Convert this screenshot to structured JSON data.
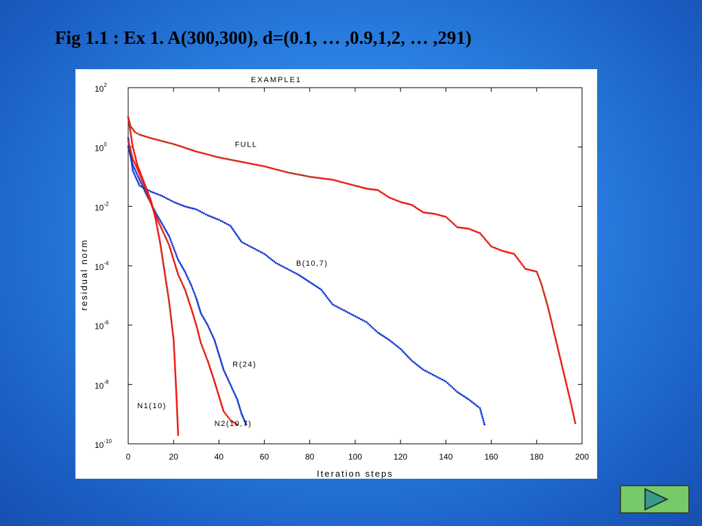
{
  "slide": {
    "title": "Fig 1.1 : Ex 1. A(300,300), d=(0.1, … ,0.9,1,2, … ,291)",
    "next_button_icon": "play-triangle-icon"
  },
  "chart_data": {
    "type": "line",
    "title": "EXAMPLE1",
    "xlabel": "Iteration steps",
    "ylabel": "residual norm",
    "xlim": [
      0,
      200
    ],
    "ylim_log10": [
      -10,
      2
    ],
    "yscale": "log",
    "x_ticks": [
      0,
      20,
      40,
      60,
      80,
      100,
      120,
      140,
      160,
      180,
      200
    ],
    "x_tick_labels": [
      "0",
      "20",
      "40",
      "60",
      "80",
      "100",
      "120",
      "140",
      "160",
      "180",
      "200"
    ],
    "y_ticks_log10": [
      2,
      0,
      -2,
      -4,
      -6,
      -8,
      -10
    ],
    "y_tick_labels": [
      {
        "base": "10",
        "exp": "2"
      },
      {
        "base": "10",
        "exp": "0"
      },
      {
        "base": "10",
        "exp": "-2"
      },
      {
        "base": "10",
        "exp": "-4"
      },
      {
        "base": "10",
        "exp": "-6"
      },
      {
        "base": "10",
        "exp": "-8"
      },
      {
        "base": "10",
        "exp": "-10"
      }
    ],
    "grid": false,
    "series": [
      {
        "name": "FULL",
        "color": "#ee1111",
        "fit_color": "#22cc22",
        "x": [
          0,
          1,
          3,
          5,
          10,
          20,
          30,
          40,
          50,
          60,
          70,
          80,
          90,
          100,
          105,
          110,
          115,
          120,
          125,
          130,
          135,
          140,
          145,
          150,
          155,
          160,
          165,
          170,
          175,
          180,
          182,
          185,
          190,
          195,
          197
        ],
        "log10_y": [
          1.0,
          0.7,
          0.5,
          0.42,
          0.3,
          0.1,
          -0.15,
          -0.35,
          -0.5,
          -0.65,
          -0.85,
          -1.0,
          -1.1,
          -1.3,
          -1.4,
          -1.45,
          -1.7,
          -1.85,
          -1.95,
          -2.2,
          -2.25,
          -2.35,
          -2.7,
          -2.75,
          -2.9,
          -3.35,
          -3.5,
          -3.6,
          -4.1,
          -4.2,
          -4.6,
          -5.4,
          -7.0,
          -8.6,
          -9.3
        ]
      },
      {
        "name": "B(10,7)",
        "color": "#1133cc",
        "fit_color": "",
        "x": [
          0,
          2,
          5,
          10,
          15,
          20,
          25,
          30,
          35,
          40,
          45,
          50,
          55,
          60,
          65,
          70,
          75,
          80,
          85,
          90,
          95,
          100,
          105,
          110,
          115,
          120,
          125,
          130,
          135,
          140,
          145,
          150,
          155,
          157
        ],
        "log10_y": [
          0.3,
          -0.8,
          -1.3,
          -1.5,
          -1.65,
          -1.85,
          -2.0,
          -2.1,
          -2.3,
          -2.45,
          -2.65,
          -3.2,
          -3.4,
          -3.6,
          -3.9,
          -4.1,
          -4.3,
          -4.55,
          -4.8,
          -5.3,
          -5.5,
          -5.7,
          -5.9,
          -6.25,
          -6.5,
          -6.8,
          -7.2,
          -7.5,
          -7.7,
          -7.9,
          -8.25,
          -8.5,
          -8.8,
          -9.35
        ]
      },
      {
        "name": "R(24)",
        "color": "#1133cc",
        "fit_color": "",
        "x": [
          0,
          2,
          5,
          8,
          10,
          12,
          15,
          18,
          20,
          22,
          25,
          28,
          30,
          32,
          35,
          38,
          40,
          42,
          45,
          48,
          50,
          52
        ],
        "log10_y": [
          0.0,
          -0.6,
          -1.1,
          -1.6,
          -1.9,
          -2.2,
          -2.6,
          -3.0,
          -3.4,
          -3.8,
          -4.2,
          -4.7,
          -5.1,
          -5.6,
          -6.0,
          -6.5,
          -7.0,
          -7.5,
          -8.0,
          -8.5,
          -9.0,
          -9.35
        ]
      },
      {
        "name": "N2(10,7)",
        "color": "#ee1111",
        "fit_color": "#22cc22",
        "x": [
          0,
          2,
          5,
          8,
          10,
          12,
          15,
          18,
          20,
          22,
          25,
          28,
          30,
          32,
          35,
          38,
          40,
          42,
          45,
          48
        ],
        "log10_y": [
          0.2,
          -0.4,
          -0.9,
          -1.5,
          -1.9,
          -2.3,
          -2.8,
          -3.3,
          -3.8,
          -4.3,
          -4.8,
          -5.5,
          -6.0,
          -6.6,
          -7.2,
          -7.9,
          -8.4,
          -8.9,
          -9.2,
          -9.35
        ]
      },
      {
        "name": "N1(10)",
        "color": "#ee1111",
        "fit_color": "#22cc22",
        "x": [
          0,
          2,
          4,
          6,
          8,
          10,
          12,
          14,
          16,
          18,
          20,
          21,
          22
        ],
        "log10_y": [
          1.0,
          0.0,
          -0.6,
          -1.0,
          -1.4,
          -1.8,
          -2.4,
          -3.2,
          -4.2,
          -5.2,
          -6.5,
          -8.0,
          -9.7
        ]
      }
    ],
    "series_labels": [
      {
        "series": "FULL",
        "x": 47,
        "log10_y": 0.0
      },
      {
        "series": "B(10,7)",
        "x": 74,
        "log10_y": -4.0
      },
      {
        "series": "R(24)",
        "x": 46,
        "log10_y": -7.4
      },
      {
        "series": "N2(10,7)",
        "x": 38,
        "log10_y": -9.4
      },
      {
        "series": "N1(10)",
        "x": 4,
        "log10_y": -8.8
      }
    ]
  }
}
